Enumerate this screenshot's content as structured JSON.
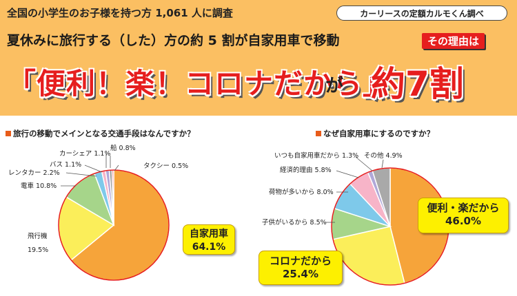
{
  "header": {
    "survey": "全国の小学生のお子様を持つ方 1,061 人に調査",
    "source": "カーリースの定額カルモくん調べ",
    "subhead": "夏休みに旅行する（した）方の約 5 割が自家用車で移動",
    "reason_tag": "その理由は",
    "headline": "「便利！楽！コロナだから」",
    "ga": "が",
    "seventy": "約7割"
  },
  "chart_data": [
    {
      "type": "pie",
      "title": "旅行の移動でメインとなる交通手段はなんですか？",
      "slices": [
        {
          "label": "自家用車",
          "value": 64.1,
          "color": "#f6a43a"
        },
        {
          "label": "飛行機",
          "value": 19.5,
          "color": "#fbee5a"
        },
        {
          "label": "電車",
          "value": 10.8,
          "color": "#a6d58a"
        },
        {
          "label": "レンタカー",
          "value": 2.2,
          "color": "#7ec9ea"
        },
        {
          "label": "バス",
          "value": 1.1,
          "color": "#f7b4c8"
        },
        {
          "label": "カーシェア",
          "value": 1.1,
          "color": "#b0a8d8"
        },
        {
          "label": "船",
          "value": 0.8,
          "color": "#9d9d9d"
        },
        {
          "label": "タクシー",
          "value": 0.5,
          "color": "#e87474"
        }
      ]
    },
    {
      "type": "pie",
      "title": "なぜ自家用車にするのですか？",
      "slices": [
        {
          "label": "便利・楽だから",
          "value": 46.0,
          "color": "#f6a43a"
        },
        {
          "label": "コロナだから",
          "value": 25.4,
          "color": "#fbee5a"
        },
        {
          "label": "子供がいるから",
          "value": 8.5,
          "color": "#a6d58a"
        },
        {
          "label": "荷物が多いから",
          "value": 8.0,
          "color": "#7ec9ea"
        },
        {
          "label": "経済的理由",
          "value": 5.8,
          "color": "#f7b4c8"
        },
        {
          "label": "いつも自家用車だから",
          "value": 1.3,
          "color": "#b0a8d8"
        },
        {
          "label": "その他",
          "value": 4.9,
          "color": "#a9a9a9"
        }
      ]
    }
  ],
  "callouts": {
    "car_label": "自家用車",
    "car_value": "64.1%",
    "convenient_label": "便利・楽だから",
    "convenient_value": "46.0%",
    "corona_label": "コロナだから",
    "corona_value": "25.4%"
  },
  "labels1": {
    "plane": "飛行機",
    "plane_value": "19.5%",
    "train": "電車 10.8%",
    "rental": "レンタカー 2.2%",
    "bus": "バス 1.1%",
    "carshare": "カーシェア 1.1%",
    "ship": "船 0.8%",
    "taxi": "タクシー 0.5%"
  },
  "labels2": {
    "always": "いつも自家用車だから 1.3%",
    "other": "その他 4.9%",
    "economic": "経済的理由 5.8%",
    "luggage": "荷物が多いから 8.0%",
    "kids": "子供がいるから 8.5%"
  }
}
